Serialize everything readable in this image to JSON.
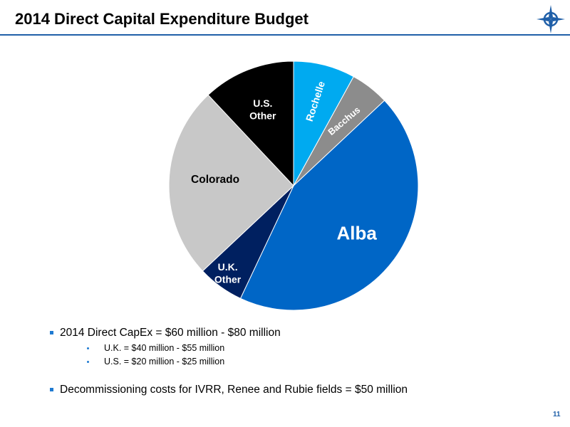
{
  "slide": {
    "title": "2014 Direct Capital Expenditure Budget",
    "page_number": "11"
  },
  "logo": {
    "icon": "compass-star-icon",
    "color": "#1f5fa8"
  },
  "chart_data": {
    "type": "pie",
    "title": "",
    "start": "12 o'clock",
    "direction": "clockwise",
    "slices": [
      {
        "label": "Rochelle",
        "value": 8,
        "color": "#00aaf0",
        "text_color": "#ffffff"
      },
      {
        "label": "Bacchus",
        "value": 5,
        "color": "#8c8c8c",
        "text_color": "#ffffff"
      },
      {
        "label": "Alba",
        "value": 44,
        "color": "#0066c6",
        "text_color": "#ffffff"
      },
      {
        "label": "U.K.\nOther",
        "value": 6,
        "color": "#002060",
        "text_color": "#ffffff"
      },
      {
        "label": "Colorado",
        "value": 25,
        "color": "#c8c8c8",
        "text_color": "#000000"
      },
      {
        "label": "U.S.\nOther",
        "value": 12,
        "color": "#000000",
        "text_color": "#ffffff"
      }
    ]
  },
  "bullets": [
    {
      "text": "2014 Direct CapEx = $60 million - $80 million",
      "sub": [
        "U.K. = $40 million - $55 million",
        "U.S. = $20 million - $25 million"
      ]
    },
    {
      "text": "Decommissioning costs for IVRR, Renee and Rubie fields = $50 million",
      "sub": []
    }
  ]
}
